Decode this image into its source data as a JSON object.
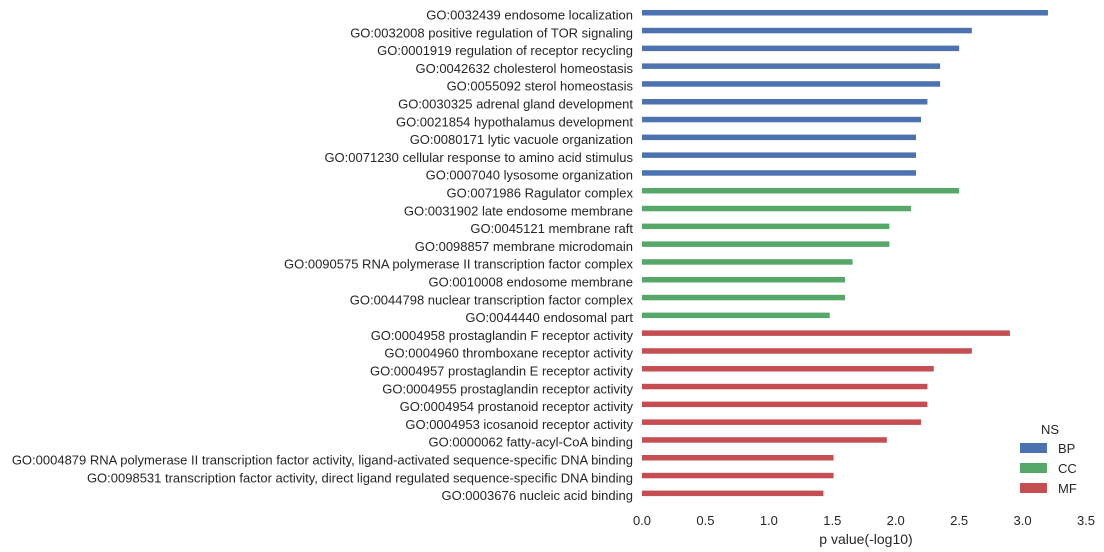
{
  "chart_data": {
    "type": "bar",
    "orientation": "horizontal",
    "title": "",
    "xlabel": "p value(-log10)",
    "ylabel": "",
    "xlim": [
      0,
      3.5
    ],
    "xticks": [
      "0.0",
      "0.5",
      "1.0",
      "1.5",
      "2.0",
      "2.5",
      "3.0",
      "3.5"
    ],
    "grid": false,
    "legend": {
      "title": "NS",
      "placement": "bottom-right",
      "entries": [
        {
          "name": "BP",
          "color": "#4c72b0"
        },
        {
          "name": "CC",
          "color": "#55a868"
        },
        {
          "name": "MF",
          "color": "#c44e52"
        }
      ]
    },
    "categories": [
      "GO:0032439 endosome localization",
      "GO:0032008 positive regulation of TOR signaling",
      "GO:0001919 regulation of receptor recycling",
      "GO:0042632 cholesterol homeostasis",
      "GO:0055092 sterol homeostasis",
      "GO:0030325 adrenal gland development",
      "GO:0021854 hypothalamus development",
      "GO:0080171 lytic vacuole organization",
      "GO:0071230 cellular response to amino acid stimulus",
      "GO:0007040 lysosome organization",
      "GO:0071986 Ragulator complex",
      "GO:0031902 late endosome membrane",
      "GO:0045121 membrane raft",
      "GO:0098857 membrane microdomain",
      "GO:0090575 RNA polymerase II transcription factor complex",
      "GO:0010008 endosome membrane",
      "GO:0044798 nuclear transcription factor complex",
      "GO:0044440 endosomal part",
      "GO:0004958 prostaglandin F receptor activity",
      "GO:0004960 thromboxane receptor activity",
      "GO:0004957 prostaglandin E receptor activity",
      "GO:0004955 prostaglandin receptor activity",
      "GO:0004954 prostanoid receptor activity",
      "GO:0004953 icosanoid receptor activity",
      "GO:0000062 fatty-acyl-CoA binding",
      "GO:0004879 RNA polymerase II transcription factor activity, ligand-activated sequence-specific DNA binding",
      "GO:0098531 transcription factor activity, direct ligand regulated sequence-specific DNA binding",
      "GO:0003676 nucleic acid binding"
    ],
    "values": [
      3.2,
      2.6,
      2.5,
      2.35,
      2.35,
      2.25,
      2.2,
      2.16,
      2.16,
      2.16,
      2.5,
      2.12,
      1.95,
      1.95,
      1.66,
      1.6,
      1.6,
      1.48,
      2.9,
      2.6,
      2.3,
      2.25,
      2.25,
      2.2,
      1.93,
      1.51,
      1.51,
      1.43
    ],
    "groups": [
      "BP",
      "BP",
      "BP",
      "BP",
      "BP",
      "BP",
      "BP",
      "BP",
      "BP",
      "BP",
      "CC",
      "CC",
      "CC",
      "CC",
      "CC",
      "CC",
      "CC",
      "CC",
      "MF",
      "MF",
      "MF",
      "MF",
      "MF",
      "MF",
      "MF",
      "MF",
      "MF",
      "MF"
    ]
  }
}
